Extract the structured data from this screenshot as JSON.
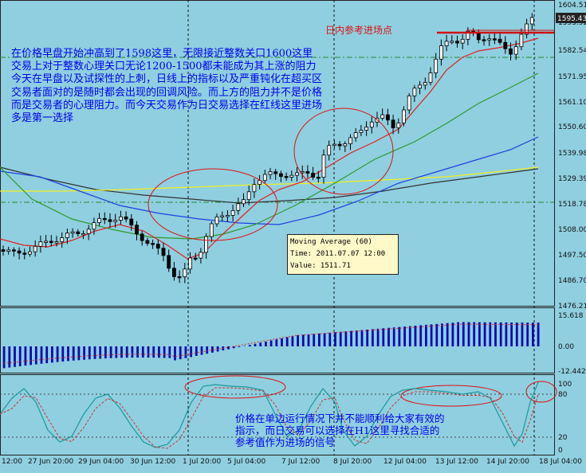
{
  "chart": {
    "price_axis": {
      "labels": [
        "1604.51",
        "1593.92",
        "1582.54",
        "1571.95",
        "1561.10",
        "1550.60",
        "1539.98",
        "1529.39",
        "1518.78",
        "1508.00",
        "1497.50",
        "1486.70",
        "1476.21"
      ]
    },
    "current_price": "1595.43",
    "macd_axis": {
      "labels": [
        "15.618",
        "0.00",
        "-12.442"
      ]
    },
    "stoch_axis": {
      "labels": [
        "100",
        "80",
        "20",
        "0"
      ]
    },
    "time_axis": {
      "labels": [
        "12:00",
        "27 Jun 20:00",
        "29 Jun 04:00",
        "30 Jun 12:00",
        "1 Jul 20:00",
        "5 Jul 04:00",
        "7 Jul 12:00",
        "8 Jul 20:00",
        "12 Jul 04:00",
        "13 Jul 12:00",
        "14 Jul 20:00",
        "18 Jul 04:00"
      ]
    },
    "entry_label": "日内参考进场点",
    "tooltip": {
      "name": "Moving Average (60)",
      "time": "Time: 2011.07.07 12:00",
      "value": "Value: 1511.71"
    }
  },
  "notes": {
    "main": [
      "在价格早盘开始冲高到了1598这里，无限接近整数关口1600这里",
      "交易上对于整数心理关口无论1200-1500都未能成为其上涨的阻力",
      "今天在早盘以及试探性的上刺，日线上的指标以及严重钝化在超买区",
      "交易者面对的是随时都会出现的回调风险。而上方的阻力并不是价格",
      "而是交易者的心理阻力。而今天交易作为日交易选择在红线这里进场",
      "多是第一选择"
    ],
    "stoch": [
      "价格在单边运行情况下并不能顺利给大家有效的",
      "指示，而日交易可以选择在H1这里寻找合适的",
      "参考值作为进场的信号"
    ]
  },
  "colors": {
    "background": "#8fcfe0",
    "ma_red": "#e02020",
    "ma_green": "#2e9a2e",
    "ma_blue": "#2040e0",
    "ma_yellow": "#f0f020",
    "ma_dark": "#333333",
    "macd_bar": "#0a0ab0",
    "note_text": "#0000ee"
  }
}
